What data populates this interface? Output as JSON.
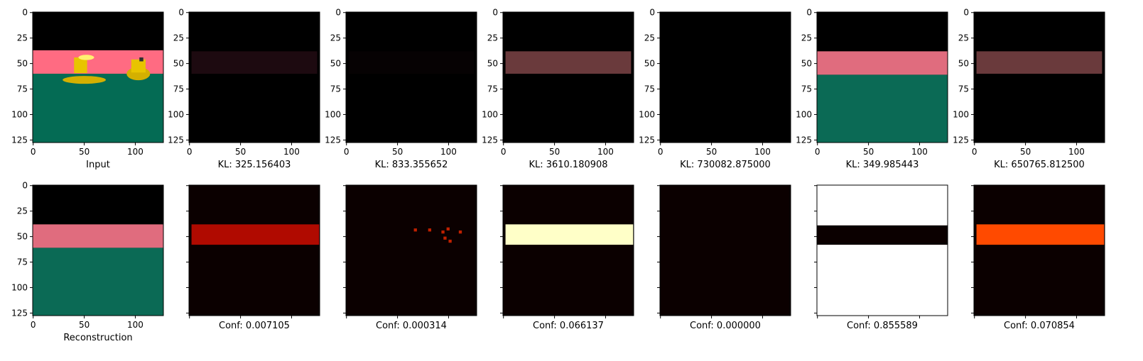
{
  "chart_data": {
    "type": "heatmap",
    "axis_range": [
      0,
      127
    ],
    "tick_labels": [
      "0",
      "50",
      "100"
    ],
    "y_tick_labels": [
      "0",
      "25",
      "50",
      "75",
      "100",
      "125"
    ],
    "rows": [
      {
        "panels": [
          {
            "caption": "Input",
            "kind": "scene",
            "bg": "#000000"
          },
          {
            "caption": "KL: 325.156403",
            "kind": "dim",
            "band_color": "#1d0a10",
            "bg": "#000000"
          },
          {
            "caption": "KL: 833.355652",
            "kind": "dim",
            "band_color": "#060203",
            "bg": "#000000"
          },
          {
            "caption": "KL: 3610.180908",
            "kind": "band",
            "band_color": "#6a3a3c",
            "bg": "#000000"
          },
          {
            "caption": "KL: 730082.875000",
            "kind": "empty",
            "bg": "#000000"
          },
          {
            "caption": "KL: 349.985443",
            "kind": "recon",
            "bg": "#000000"
          },
          {
            "caption": "KL: 650765.812500",
            "kind": "band",
            "band_color": "#6a3a3c",
            "bg": "#000000"
          }
        ]
      },
      {
        "panels": [
          {
            "caption": "Reconstruction",
            "kind": "recon",
            "bg": "#000000"
          },
          {
            "caption": "Conf: 0.007105",
            "kind": "mask",
            "band_color": "#b00a00",
            "bg": "#0b0000"
          },
          {
            "caption": "Conf: 0.000314",
            "kind": "speckle",
            "band_color": "#c02000",
            "bg": "#0b0000"
          },
          {
            "caption": "Conf: 0.066137",
            "kind": "mask",
            "band_color": "#ffffc8",
            "bg": "#0b0000"
          },
          {
            "caption": "Conf: 0.000000",
            "kind": "empty",
            "bg": "#0b0000"
          },
          {
            "caption": "Conf: 0.855589",
            "kind": "inverse",
            "band_color": "#0b0000",
            "bg": "#ffffff"
          },
          {
            "caption": "Conf: 0.070854",
            "kind": "mask",
            "band_color": "#ff4a00",
            "bg": "#0b0000"
          }
        ]
      }
    ]
  }
}
